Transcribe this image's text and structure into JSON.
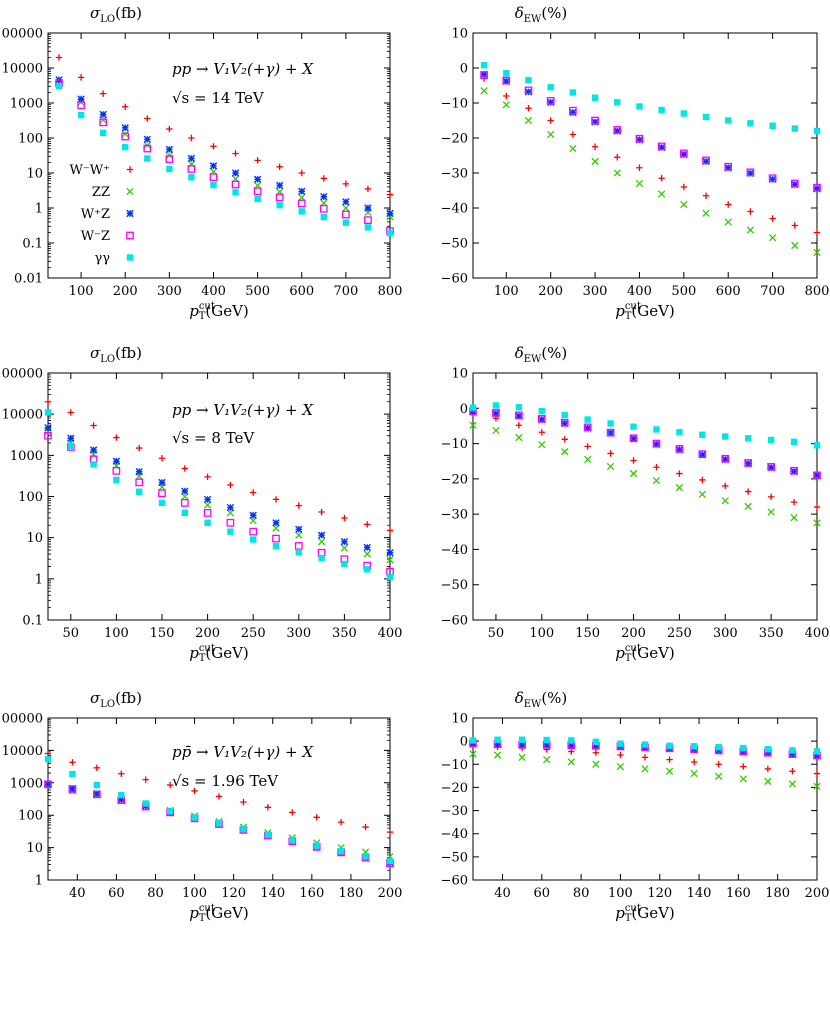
{
  "chart_data": [
    {
      "type": "scatter",
      "title": "σ_LO(fb)",
      "ylabel_main": "σ",
      "ylabel_sub": "LO",
      "ylabel_unit": "(fb)",
      "xlabel_main": "p",
      "xlabel_sub": "T",
      "xlabel_sup": "cut",
      "xlabel_unit": "(GeV)",
      "process": "pp → V₁V₂(+γ) + X",
      "energy": "√s = 14 TeV",
      "yscale": "log",
      "xlim": [
        25,
        800
      ],
      "ylim": [
        0.01,
        100000
      ],
      "xticks": [
        100,
        200,
        300,
        400,
        500,
        600,
        700,
        800
      ],
      "yticks": [
        0.01,
        0.1,
        1,
        10,
        100,
        1000,
        10000,
        100000
      ],
      "ytick_labels": [
        "0.01",
        "0.1",
        "1",
        "10",
        "100",
        "1000",
        "10000",
        "100000"
      ],
      "legend": "left",
      "x": [
        50,
        100,
        150,
        200,
        250,
        300,
        350,
        400,
        450,
        500,
        550,
        600,
        650,
        700,
        750,
        800
      ],
      "series": [
        {
          "name": "W⁻W⁺",
          "values": [
            20000,
            5400,
            1850,
            780,
            360,
            180,
            100,
            58,
            36,
            23,
            15,
            10,
            7,
            4.9,
            3.5,
            2.4
          ]
        },
        {
          "name": "ZZ",
          "values": [
            3800,
            1050,
            330,
            130,
            62,
            32,
            18,
            11,
            6.8,
            4.4,
            2.9,
            2.0,
            1.4,
            1.0,
            0.75,
            0.56
          ]
        },
        {
          "name": "W⁺Z",
          "values": [
            4600,
            1300,
            470,
            195,
            92,
            47,
            26,
            16,
            10,
            6.6,
            4.4,
            3.0,
            2.1,
            1.5,
            1.0,
            0.7
          ]
        },
        {
          "name": "W⁻Z",
          "values": [
            3700,
            870,
            280,
            110,
            50,
            25,
            13,
            7.6,
            4.7,
            3.0,
            2.0,
            1.35,
            0.95,
            0.65,
            0.45,
            0.22
          ]
        },
        {
          "name": "γγ",
          "values": [
            3000,
            450,
            140,
            55,
            26,
            13,
            7.5,
            4.5,
            2.8,
            1.8,
            1.2,
            0.8,
            0.55,
            0.38,
            0.28,
            0.19
          ]
        }
      ],
      "colors": [
        "#ff0000",
        "#33cc00",
        "#0033ff",
        "#ff00ff",
        "#00e6e6"
      ],
      "markers": [
        "plus",
        "cross",
        "star",
        "square",
        "filled-square"
      ]
    },
    {
      "type": "scatter",
      "title": "δ_EW(%)",
      "ylabel_main": "δ",
      "ylabel_sub": "EW",
      "ylabel_unit": "(%)",
      "xlabel_main": "p",
      "xlabel_sub": "T",
      "xlabel_sup": "cut",
      "xlabel_unit": "(GeV)",
      "yscale": "linear",
      "xlim": [
        25,
        800
      ],
      "ylim": [
        -60,
        10
      ],
      "xticks": [
        100,
        200,
        300,
        400,
        500,
        600,
        700,
        800
      ],
      "yticks": [
        -60,
        -50,
        -40,
        -30,
        -20,
        -10,
        0,
        10
      ],
      "ytick_labels": [
        "−60",
        "−50",
        "−40",
        "−30",
        "−20",
        "−10",
        "0",
        "10"
      ],
      "x": [
        50,
        100,
        150,
        200,
        250,
        300,
        350,
        400,
        450,
        500,
        550,
        600,
        650,
        700,
        750,
        800
      ],
      "series": [
        {
          "name": "W⁻W⁺",
          "values": [
            -3,
            -8,
            -11.5,
            -15,
            -19,
            -22.5,
            -25.5,
            -28.5,
            -31.5,
            -34,
            -36.5,
            -39,
            -41,
            -43,
            -45,
            -47
          ]
        },
        {
          "name": "ZZ",
          "values": [
            -6.5,
            -10.5,
            -15,
            -19,
            -23,
            -26.7,
            -30,
            -33,
            -36,
            -39,
            -41.5,
            -44,
            -46.3,
            -48.5,
            -50.7,
            -52.7
          ]
        },
        {
          "name": "W⁺Z",
          "values": [
            -1.8,
            -3.8,
            -6.8,
            -9.8,
            -12.7,
            -15.4,
            -18,
            -20.5,
            -22.7,
            -24.7,
            -26.7,
            -28.5,
            -30.1,
            -31.8,
            -33.3,
            -34.5
          ]
        },
        {
          "name": "W⁻Z",
          "values": [
            -2,
            -3.6,
            -6.4,
            -9.4,
            -12.2,
            -15,
            -17.7,
            -20.2,
            -22.4,
            -24.4,
            -26.4,
            -28.2,
            -29.8,
            -31.5,
            -33,
            -34.2
          ]
        },
        {
          "name": "γγ",
          "values": [
            0.8,
            -1.5,
            -3.5,
            -5.5,
            -7,
            -8.5,
            -9.8,
            -11,
            -12,
            -13,
            -14,
            -15,
            -15.8,
            -16.5,
            -17.3,
            -18
          ]
        }
      ],
      "colors": [
        "#ff0000",
        "#33cc00",
        "#0033ff",
        "#ff00ff",
        "#00e6e6"
      ],
      "markers": [
        "plus",
        "cross",
        "star",
        "square",
        "filled-square"
      ]
    },
    {
      "type": "scatter",
      "title": "σ_LO(fb)",
      "ylabel_main": "σ",
      "ylabel_sub": "LO",
      "ylabel_unit": "(fb)",
      "xlabel_main": "p",
      "xlabel_sub": "T",
      "xlabel_sup": "cut",
      "xlabel_unit": "(GeV)",
      "process": "pp → V₁V₂(+γ) + X",
      "energy": "√s = 8 TeV",
      "yscale": "log",
      "xlim": [
        25,
        400
      ],
      "ylim": [
        0.1,
        100000
      ],
      "xticks": [
        50,
        100,
        150,
        200,
        250,
        300,
        350,
        400
      ],
      "yticks": [
        0.1,
        1,
        10,
        100,
        1000,
        10000,
        100000
      ],
      "ytick_labels": [
        "0.1",
        "1",
        "10",
        "100",
        "1000",
        "10000",
        "100000"
      ],
      "x": [
        25,
        50,
        75,
        100,
        125,
        150,
        175,
        200,
        225,
        250,
        275,
        300,
        325,
        350,
        375,
        400
      ],
      "series": [
        {
          "name": "W⁻W⁺",
          "values": [
            20000,
            11000,
            5300,
            2700,
            1500,
            850,
            480,
            300,
            190,
            125,
            85,
            60,
            42,
            30,
            21,
            15
          ]
        },
        {
          "name": "ZZ",
          "values": [
            3800,
            2000,
            1050,
            560,
            310,
            170,
            100,
            62,
            40,
            26,
            17,
            11.5,
            8,
            5.6,
            4.0,
            2.9
          ]
        },
        {
          "name": "W⁺Z",
          "values": [
            4700,
            2600,
            1350,
            720,
            400,
            220,
            135,
            85,
            54,
            35,
            23,
            16,
            11.5,
            8,
            5.8,
            4.3
          ]
        },
        {
          "name": "W⁻Z",
          "values": [
            3000,
            1600,
            800,
            420,
            220,
            120,
            70,
            40,
            23,
            14,
            9.5,
            6.3,
            4.3,
            3.0,
            2.1,
            1.5
          ]
        },
        {
          "name": "γγ",
          "values": [
            11000,
            1700,
            600,
            250,
            130,
            70,
            40,
            23,
            14,
            9,
            6.2,
            4.4,
            3.2,
            2.3,
            1.7,
            1.1
          ]
        }
      ],
      "colors": [
        "#ff0000",
        "#33cc00",
        "#0033ff",
        "#ff00ff",
        "#00e6e6"
      ],
      "markers": [
        "plus",
        "cross",
        "star",
        "square",
        "filled-square"
      ]
    },
    {
      "type": "scatter",
      "title": "δ_EW(%)",
      "ylabel_main": "δ",
      "ylabel_sub": "EW",
      "ylabel_unit": "(%)",
      "xlabel_main": "p",
      "xlabel_sub": "T",
      "xlabel_sup": "cut",
      "xlabel_unit": "(GeV)",
      "yscale": "linear",
      "xlim": [
        25,
        400
      ],
      "ylim": [
        -60,
        10
      ],
      "xticks": [
        50,
        100,
        150,
        200,
        250,
        300,
        350,
        400
      ],
      "yticks": [
        -60,
        -50,
        -40,
        -30,
        -20,
        -10,
        0,
        10
      ],
      "ytick_labels": [
        "−60",
        "−50",
        "−40",
        "−30",
        "−20",
        "−10",
        "0",
        "10"
      ],
      "x": [
        25,
        50,
        75,
        100,
        125,
        150,
        175,
        200,
        225,
        250,
        275,
        300,
        325,
        350,
        375,
        400
      ],
      "series": [
        {
          "name": "W⁻W⁺",
          "values": [
            -1.5,
            -2.8,
            -4.8,
            -6.8,
            -8.8,
            -10.8,
            -12.8,
            -14.8,
            -16.7,
            -18.5,
            -20.3,
            -22,
            -23.6,
            -25.1,
            -26.6,
            -28
          ]
        },
        {
          "name": "ZZ",
          "values": [
            -4.8,
            -6.3,
            -8.3,
            -10.3,
            -12.3,
            -14.5,
            -16.5,
            -18.5,
            -20.5,
            -22.5,
            -24.4,
            -26.2,
            -27.8,
            -29.4,
            -31,
            -32.5
          ]
        },
        {
          "name": "W⁺Z",
          "values": [
            -0.7,
            -1.5,
            -2.2,
            -3.2,
            -4.3,
            -5.6,
            -7,
            -8.6,
            -10.2,
            -11.7,
            -13.2,
            -14.5,
            -15.7,
            -16.8,
            -17.9,
            -19
          ]
        },
        {
          "name": "W⁻Z",
          "values": [
            -0.9,
            -1.3,
            -2.0,
            -3.0,
            -4.1,
            -5.4,
            -6.9,
            -8.5,
            -10,
            -11.5,
            -13,
            -14.3,
            -15.5,
            -16.6,
            -17.7,
            -19
          ]
        },
        {
          "name": "γγ",
          "values": [
            0.2,
            0.8,
            0.3,
            -0.8,
            -1.9,
            -3.2,
            -4.3,
            -5.2,
            -6.0,
            -6.8,
            -7.5,
            -8.0,
            -8.5,
            -9.0,
            -9.5,
            -10.5
          ]
        }
      ],
      "colors": [
        "#ff0000",
        "#33cc00",
        "#0033ff",
        "#ff00ff",
        "#00e6e6"
      ],
      "markers": [
        "plus",
        "cross",
        "star",
        "square",
        "filled-square"
      ]
    },
    {
      "type": "scatter",
      "title": "σ_LO(fb)",
      "ylabel_main": "σ",
      "ylabel_sub": "LO",
      "ylabel_unit": "(fb)",
      "xlabel_main": "p",
      "xlabel_sub": "T",
      "xlabel_sup": "cut",
      "xlabel_unit": "(GeV)",
      "process": "pp̄ → V₁V₂(+γ) + X",
      "energy": "√s = 1.96 TeV",
      "yscale": "log",
      "xlim": [
        25,
        200
      ],
      "ylim": [
        1,
        100000
      ],
      "xticks": [
        40,
        60,
        80,
        100,
        120,
        140,
        160,
        180,
        200
      ],
      "yticks": [
        1,
        10,
        100,
        1000,
        10000,
        100000
      ],
      "ytick_labels": [
        "1",
        "10",
        "100",
        "1000",
        "10000",
        "100000"
      ],
      "x": [
        25,
        37.5,
        50,
        62.5,
        75,
        87.5,
        100,
        112.5,
        125,
        137.5,
        150,
        162.5,
        175,
        187.5,
        200
      ],
      "series": [
        {
          "name": "W⁻W⁺",
          "values": [
            8000,
            4300,
            2900,
            1900,
            1250,
            850,
            560,
            380,
            255,
            175,
            122,
            86,
            61,
            43,
            30
          ]
        },
        {
          "name": "ZZ",
          "values": [
            900,
            580,
            430,
            310,
            210,
            140,
            95,
            64,
            43,
            29,
            20,
            14,
            10,
            7.3,
            5.3
          ]
        },
        {
          "name": "W⁺Z",
          "values": [
            900,
            660,
            460,
            300,
            190,
            125,
            82,
            54,
            36,
            24,
            16,
            10.8,
            7.3,
            5,
            3.4
          ]
        },
        {
          "name": "W⁻Z",
          "values": [
            900,
            640,
            440,
            290,
            185,
            122,
            80,
            53,
            35,
            23.5,
            15.5,
            10.5,
            7.1,
            4.9,
            3.3
          ]
        },
        {
          "name": "γγ",
          "values": [
            5400,
            1850,
            850,
            420,
            230,
            135,
            85,
            56,
            37,
            25,
            17,
            11.5,
            7.8,
            5.4,
            3.8
          ]
        }
      ],
      "colors": [
        "#ff0000",
        "#33cc00",
        "#0033ff",
        "#ff00ff",
        "#00e6e6"
      ],
      "markers": [
        "plus",
        "cross",
        "star",
        "square",
        "filled-square"
      ]
    },
    {
      "type": "scatter",
      "title": "δ_EW(%)",
      "ylabel_main": "δ",
      "ylabel_sub": "EW",
      "ylabel_unit": "(%)",
      "xlabel_main": "p",
      "xlabel_sub": "T",
      "xlabel_sup": "cut",
      "xlabel_unit": "(GeV)",
      "yscale": "linear",
      "xlim": [
        25,
        200
      ],
      "ylim": [
        -60,
        10
      ],
      "xticks": [
        40,
        60,
        80,
        100,
        120,
        140,
        160,
        180,
        200
      ],
      "yticks": [
        -60,
        -50,
        -40,
        -30,
        -20,
        -10,
        0,
        10
      ],
      "ytick_labels": [
        "−60",
        "−50",
        "−40",
        "−30",
        "−20",
        "−10",
        "0",
        "10"
      ],
      "x": [
        25,
        37.5,
        50,
        62.5,
        75,
        87.5,
        100,
        112.5,
        125,
        137.5,
        150,
        162.5,
        175,
        187.5,
        200
      ],
      "series": [
        {
          "name": "W⁻W⁺",
          "values": [
            -1.5,
            -2.5,
            -3,
            -3.6,
            -4.5,
            -5,
            -6,
            -7,
            -8,
            -9,
            -10,
            -11,
            -12,
            -13,
            -14
          ]
        },
        {
          "name": "ZZ",
          "values": [
            -5.5,
            -6,
            -7,
            -8,
            -9,
            -10,
            -11,
            -12,
            -13,
            -14,
            -15.2,
            -16.3,
            -17.4,
            -18.5,
            -19.5
          ]
        },
        {
          "name": "W⁺Z",
          "values": [
            -1.2,
            -1.5,
            -1.6,
            -1.7,
            -1.9,
            -2.1,
            -2.4,
            -2.8,
            -3.2,
            -3.6,
            -4.1,
            -4.6,
            -5.1,
            -5.7,
            -6.3
          ]
        },
        {
          "name": "W⁻Z",
          "values": [
            -1.0,
            -1.3,
            -1.5,
            -1.6,
            -1.8,
            -2.0,
            -2.3,
            -2.7,
            -3.1,
            -3.5,
            -4.0,
            -4.5,
            -5.0,
            -5.6,
            -6.2
          ]
        },
        {
          "name": "γγ",
          "values": [
            0.3,
            0.6,
            0.6,
            0.5,
            0.3,
            -0.3,
            -1.1,
            -1.5,
            -2.0,
            -2.2,
            -2.6,
            -3.0,
            -3.5,
            -4.0,
            -4.4
          ]
        }
      ],
      "colors": [
        "#ff0000",
        "#33cc00",
        "#0033ff",
        "#ff00ff",
        "#00e6e6"
      ],
      "markers": [
        "plus",
        "cross",
        "star",
        "square",
        "filled-square"
      ]
    }
  ]
}
